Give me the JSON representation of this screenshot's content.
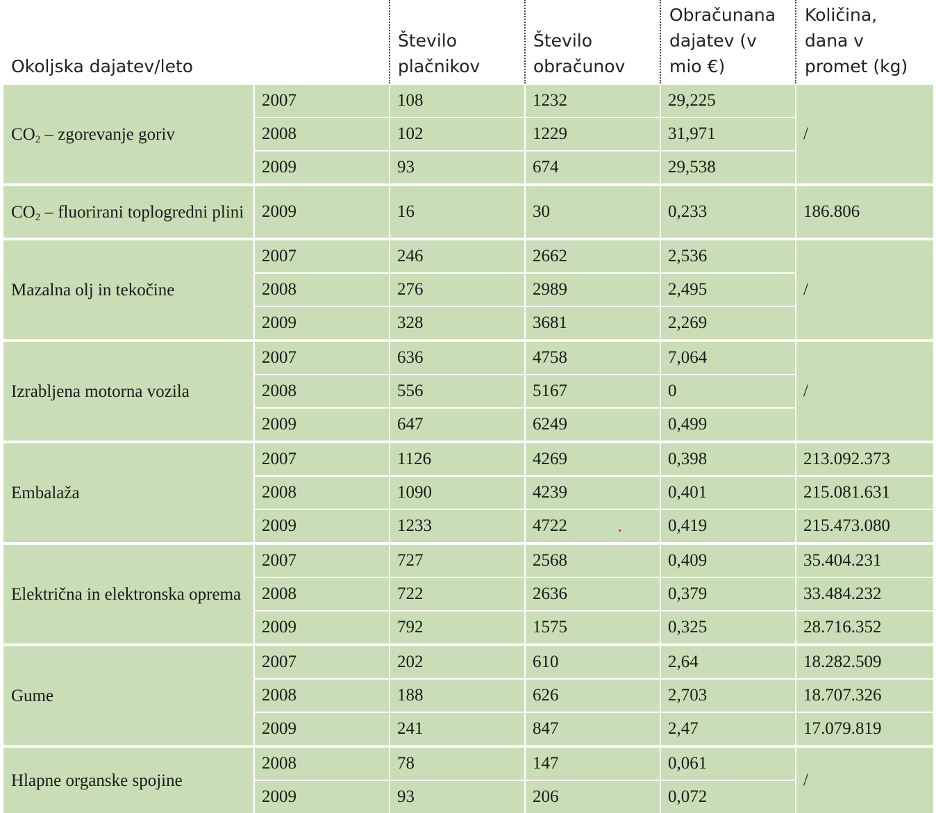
{
  "table": {
    "headers": {
      "category": "Okoljska dajatev/leto",
      "payers": "Število\nplačnikov",
      "calculations": "Število\nobračunov",
      "charged": "Obračunana\ndajatev (v\nmio €)",
      "quantity": "Količina,\ndana v\npromet (kg)"
    },
    "groups": [
      {
        "category_main": "CO",
        "category_sub": "2",
        "category_rest": " – zgorevanje goriv",
        "quantity_merged": "/",
        "rows": [
          {
            "year": "2007",
            "payers": "108",
            "calculations": "1232",
            "charged": "29,225",
            "quantity": ""
          },
          {
            "year": "2008",
            "payers": "102",
            "calculations": "1229",
            "charged": "31,971",
            "quantity": ""
          },
          {
            "year": "2009",
            "payers": "93",
            "calculations": "674",
            "charged": "29,538",
            "quantity": ""
          }
        ]
      },
      {
        "category_main": "CO",
        "category_sub": "2",
        "category_rest": " – fluorirani toplogredni plini",
        "quantity_merged": "",
        "rows": [
          {
            "year": "2009",
            "payers": "16",
            "calculations": "30",
            "charged": "0,233",
            "quantity": "186.806"
          }
        ]
      },
      {
        "category_main": "Mazalna olj in tekočine",
        "category_sub": "",
        "category_rest": "",
        "quantity_merged": "/",
        "rows": [
          {
            "year": "2007",
            "payers": "246",
            "calculations": "2662",
            "charged": "2,536",
            "quantity": ""
          },
          {
            "year": "2008",
            "payers": "276",
            "calculations": "2989",
            "charged": "2,495",
            "quantity": ""
          },
          {
            "year": "2009",
            "payers": "328",
            "calculations": "3681",
            "charged": "2,269",
            "quantity": ""
          }
        ]
      },
      {
        "category_main": "Izrabljena motorna vozila",
        "category_sub": "",
        "category_rest": "",
        "quantity_merged": "/",
        "rows": [
          {
            "year": "2007",
            "payers": "636",
            "calculations": "4758",
            "charged": "7,064",
            "quantity": ""
          },
          {
            "year": "2008",
            "payers": "556",
            "calculations": "5167",
            "charged": "0",
            "quantity": ""
          },
          {
            "year": "2009",
            "payers": "647",
            "calculations": "6249",
            "charged": "0,499",
            "quantity": ""
          }
        ]
      },
      {
        "category_main": "Embalaža",
        "category_sub": "",
        "category_rest": "",
        "quantity_merged": "",
        "rows": [
          {
            "year": "2007",
            "payers": "1126",
            "calculations": "4269",
            "charged": "0,398",
            "quantity": "213.092.373"
          },
          {
            "year": "2008",
            "payers": "1090",
            "calculations": "4239",
            "charged": "0,401",
            "quantity": "215.081.631"
          },
          {
            "year": "2009",
            "payers": "1233",
            "calculations": "4722",
            "charged": "0,419",
            "quantity": "215.473.080"
          }
        ]
      },
      {
        "category_main": "Električna in elektronska oprema",
        "category_sub": "",
        "category_rest": "",
        "quantity_merged": "",
        "rows": [
          {
            "year": "2007",
            "payers": "727",
            "calculations": "2568",
            "charged": "0,409",
            "quantity": "35.404.231"
          },
          {
            "year": "2008",
            "payers": "722",
            "calculations": "2636",
            "charged": "0,379",
            "quantity": "33.484.232"
          },
          {
            "year": "2009",
            "payers": "792",
            "calculations": "1575",
            "charged": "0,325",
            "quantity": "28.716.352"
          }
        ]
      },
      {
        "category_main": "Gume",
        "category_sub": "",
        "category_rest": "",
        "quantity_merged": "",
        "rows": [
          {
            "year": "2007",
            "payers": "202",
            "calculations": "610",
            "charged": "2,64",
            "quantity": "18.282.509"
          },
          {
            "year": "2008",
            "payers": "188",
            "calculations": "626",
            "charged": "2,703",
            "quantity": "18.707.326"
          },
          {
            "year": "2009",
            "payers": "241",
            "calculations": "847",
            "charged": "2,47",
            "quantity": "17.079.819"
          }
        ]
      },
      {
        "category_main": "Hlapne organske spojine",
        "category_sub": "",
        "category_rest": "",
        "quantity_merged": "/",
        "rows": [
          {
            "year": "2008",
            "payers": "78",
            "calculations": "147",
            "charged": "0,061",
            "quantity": ""
          },
          {
            "year": "2009",
            "payers": "93",
            "calculations": "206",
            "charged": "0,072",
            "quantity": ""
          }
        ]
      }
    ]
  },
  "colors": {
    "cell_background": "#c9deb6",
    "grid_lines": "#ffffff",
    "header_separator": "#444444",
    "text": "#1a1a1a"
  }
}
